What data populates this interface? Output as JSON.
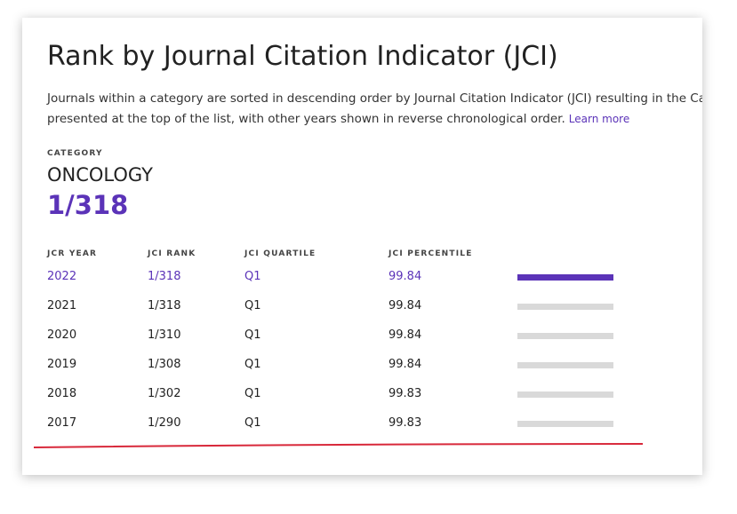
{
  "title": "Rank by Journal Citation Indicator (JCI)",
  "description": [
    "Journals within a category are sorted in descending order by Journal Citation Indicator (JCI) resulting in the Ca",
    "presented at the top of the list, with other years shown in reverse chronological order."
  ],
  "learn_more": "Learn more",
  "category_label": "CATEGORY",
  "category": "ONCOLOGY",
  "rank": "1/318",
  "table": {
    "headers": [
      "JCR YEAR",
      "JCI RANK",
      "JCI QUARTILE",
      "JCI PERCENTILE"
    ],
    "rows": [
      [
        "2022",
        "1/318",
        "Q1",
        99.84
      ],
      [
        "2021",
        "1/318",
        "Q1",
        99.84
      ],
      [
        "2020",
        "1/310",
        "Q1",
        99.84
      ],
      [
        "2019",
        "1/308",
        "Q1",
        99.84
      ],
      [
        "2018",
        "1/302",
        "Q1",
        99.83
      ],
      [
        "2017",
        "1/290",
        "Q1",
        99.83
      ]
    ],
    "highlight_row": 0,
    "highlight_color": "#5b33b8"
  }
}
